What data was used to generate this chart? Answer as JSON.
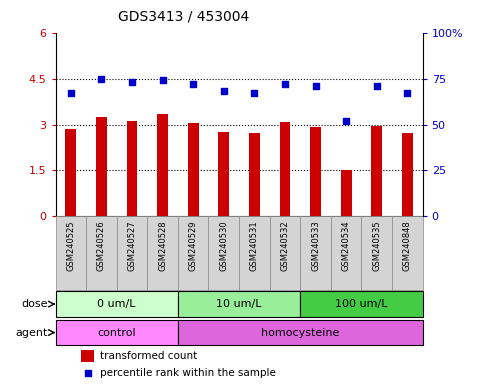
{
  "title": "GDS3413 / 453004",
  "samples": [
    "GSM240525",
    "GSM240526",
    "GSM240527",
    "GSM240528",
    "GSM240529",
    "GSM240530",
    "GSM240531",
    "GSM240532",
    "GSM240533",
    "GSM240534",
    "GSM240535",
    "GSM240848"
  ],
  "bar_values": [
    2.85,
    3.25,
    3.1,
    3.35,
    3.05,
    2.77,
    2.73,
    3.07,
    2.93,
    1.5,
    2.95,
    2.73
  ],
  "dot_values": [
    67,
    75,
    73,
    74,
    72,
    68,
    67,
    72,
    71,
    52,
    71,
    67
  ],
  "bar_color": "#cc0000",
  "dot_color": "#0000cc",
  "ylim_left": [
    0,
    6
  ],
  "ylim_right": [
    0,
    100
  ],
  "yticks_left": [
    0,
    1.5,
    3.0,
    4.5,
    6.0
  ],
  "ytick_labels_left": [
    "0",
    "1.5",
    "3",
    "4.5",
    "6"
  ],
  "yticks_right": [
    0,
    25,
    50,
    75,
    100
  ],
  "ytick_labels_right": [
    "0",
    "25",
    "50",
    "75",
    "100%"
  ],
  "hlines": [
    1.5,
    3.0,
    4.5
  ],
  "dose_groups": [
    {
      "label": "0 um/L",
      "start": 0,
      "end": 4,
      "color": "#ccffcc"
    },
    {
      "label": "10 um/L",
      "start": 4,
      "end": 8,
      "color": "#99ee99"
    },
    {
      "label": "100 um/L",
      "start": 8,
      "end": 12,
      "color": "#44cc44"
    }
  ],
  "agent_groups": [
    {
      "label": "control",
      "start": 0,
      "end": 4,
      "color": "#ff88ff"
    },
    {
      "label": "homocysteine",
      "start": 4,
      "end": 12,
      "color": "#dd66dd"
    }
  ],
  "legend_bar_label": "transformed count",
  "legend_dot_label": "percentile rank within the sample",
  "dose_label": "dose",
  "agent_label": "agent",
  "bg_color": "#ffffff",
  "plot_bg_color": "#ffffff",
  "sample_box_color": "#d4d4d4",
  "sample_box_edge_color": "#888888"
}
